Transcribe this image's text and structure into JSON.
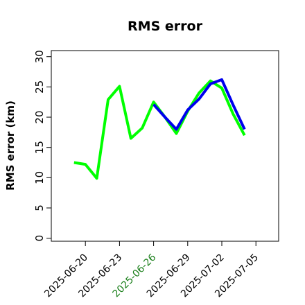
{
  "chart_data": {
    "type": "line",
    "title": "RMS error",
    "xlabel": "",
    "ylabel": "RMS error (km)",
    "xlim": [
      "2025-06-17",
      "2025-07-07"
    ],
    "ylim": [
      -0.5,
      31
    ],
    "yticks": [
      0,
      5,
      10,
      15,
      20,
      25,
      30
    ],
    "xticks": [
      {
        "date": "2025-06-20",
        "label": "2025-06-20",
        "color": "#000000"
      },
      {
        "date": "2025-06-23",
        "label": "2025-06-23",
        "color": "#000000"
      },
      {
        "date": "2025-06-26",
        "label": "2025-06-26",
        "color": "#1a7f1a"
      },
      {
        "date": "2025-06-29",
        "label": "2025-06-29",
        "color": "#000000"
      },
      {
        "date": "2025-07-02",
        "label": "2025-07-02",
        "color": "#000000"
      },
      {
        "date": "2025-07-05",
        "label": "2025-07-05",
        "color": "#000000"
      }
    ],
    "grid": false,
    "series": [
      {
        "color": "#00ff00",
        "x": [
          "2025-06-19",
          "2025-06-20",
          "2025-06-21",
          "2025-06-22",
          "2025-06-23",
          "2025-06-24",
          "2025-06-25",
          "2025-06-26",
          "2025-06-27",
          "2025-06-28",
          "2025-06-29",
          "2025-06-30",
          "2025-07-01",
          "2025-07-02",
          "2025-07-03",
          "2025-07-04"
        ],
        "y": [
          12.5,
          12.2,
          9.9,
          22.9,
          25.1,
          16.5,
          18.2,
          22.5,
          20.0,
          17.3,
          21.0,
          24.0,
          26.0,
          24.8,
          20.5,
          17.0
        ]
      },
      {
        "color": "#0000ee",
        "x": [
          "2025-06-26",
          "2025-06-27",
          "2025-06-28",
          "2025-06-29",
          "2025-06-30",
          "2025-07-01",
          "2025-07-02",
          "2025-07-03",
          "2025-07-04"
        ],
        "y": [
          22.1,
          20.0,
          18.0,
          21.2,
          23.0,
          25.5,
          26.2,
          22.0,
          18.0
        ]
      }
    ]
  }
}
